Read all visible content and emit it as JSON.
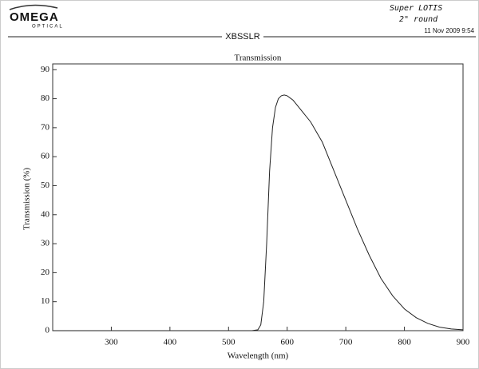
{
  "header": {
    "logo": "OMEGA",
    "logo_sub": "OPTICAL",
    "note_line1": "Super LOTIS",
    "note_line2": "2\" round",
    "part_number": "XBSSLR",
    "timestamp": "11 Nov 2009  9:54"
  },
  "chart_data": {
    "type": "line",
    "title": "Transmission",
    "x_label": "Wavelength (nm)",
    "y_label": "Transmission (%)",
    "x": [
      200,
      300,
      400,
      500,
      540,
      550,
      555,
      560,
      565,
      570,
      575,
      580,
      585,
      590,
      595,
      600,
      610,
      620,
      640,
      660,
      680,
      700,
      720,
      740,
      760,
      780,
      800,
      820,
      840,
      860,
      880,
      900
    ],
    "series": [
      {
        "name": "Transmission",
        "color": "#222222",
        "values": [
          0,
          0,
          0,
          0,
          0,
          0.3,
          2,
          10,
          30,
          55,
          70,
          77,
          80,
          81,
          81.3,
          81,
          79.5,
          77,
          72,
          65,
          55,
          45,
          35,
          26,
          18,
          12,
          7.5,
          4.5,
          2.5,
          1.2,
          0.6,
          0.3
        ]
      }
    ],
    "xlim": [
      200,
      900
    ],
    "xticks": [
      300,
      400,
      500,
      600,
      700,
      800,
      900
    ],
    "ylim": [
      0,
      92
    ],
    "yticks": [
      0,
      10,
      20,
      30,
      40,
      50,
      60,
      70,
      80,
      90
    ]
  }
}
